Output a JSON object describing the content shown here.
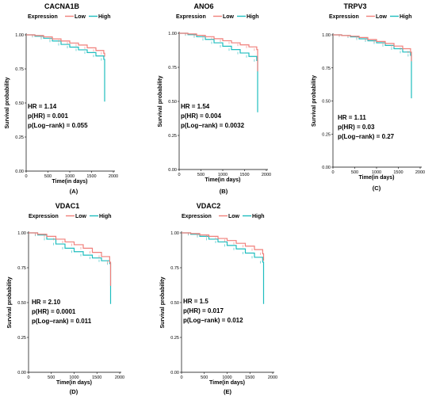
{
  "legend": {
    "title": "Expression",
    "low_label": "Low",
    "high_label": "High"
  },
  "colors": {
    "low": "#f07f7a",
    "high": "#1fbdbf"
  },
  "chart_data": [
    {
      "type": "line",
      "panel": "(A)",
      "title": "CACNA1B",
      "xlabel": "Time(in days)",
      "ylabel": "Survival probability",
      "xlim": [
        0,
        2000
      ],
      "ylim": [
        0,
        1
      ],
      "xticks": [
        "0",
        "500",
        "1000",
        "1500",
        "2000"
      ],
      "yticks": [
        "0.00",
        "0.25",
        "0.50",
        "0.75",
        "1.00"
      ],
      "stats": [
        "HR = 1.14",
        "p(HR) = 0.001",
        "p(Log−rank) = 0.055"
      ],
      "series": [
        {
          "name": "Low",
          "x": [
            0,
            200,
            400,
            600,
            800,
            1000,
            1200,
            1400,
            1600,
            1780,
            1800
          ],
          "y": [
            1.0,
            0.995,
            0.985,
            0.97,
            0.955,
            0.94,
            0.925,
            0.905,
            0.885,
            0.865,
            0.84
          ]
        },
        {
          "name": "High",
          "x": [
            0,
            200,
            400,
            600,
            800,
            1000,
            1200,
            1400,
            1600,
            1780,
            1800
          ],
          "y": [
            1.0,
            0.99,
            0.975,
            0.955,
            0.93,
            0.91,
            0.89,
            0.87,
            0.845,
            0.82,
            0.51
          ]
        }
      ]
    },
    {
      "type": "line",
      "panel": "(B)",
      "title": "ANO6",
      "xlabel": "Time(in days)",
      "ylabel": "Survival probability",
      "xlim": [
        0,
        2000
      ],
      "ylim": [
        0,
        1
      ],
      "xticks": [
        "0",
        "500",
        "1000",
        "1500",
        "2000"
      ],
      "yticks": [
        "0.00",
        "0.25",
        "0.50",
        "0.75",
        "1.00"
      ],
      "stats": [
        "HR = 1.54",
        "p(HR) = 0.004",
        "p(Log−rank) = 0.0032"
      ],
      "series": [
        {
          "name": "Low",
          "x": [
            0,
            200,
            400,
            600,
            800,
            1000,
            1200,
            1400,
            1600,
            1780,
            1800
          ],
          "y": [
            1.0,
            0.995,
            0.985,
            0.975,
            0.96,
            0.945,
            0.93,
            0.915,
            0.9,
            0.88,
            0.72
          ]
        },
        {
          "name": "High",
          "x": [
            0,
            200,
            400,
            600,
            800,
            1000,
            1200,
            1400,
            1600,
            1780,
            1800
          ],
          "y": [
            1.0,
            0.99,
            0.975,
            0.955,
            0.93,
            0.905,
            0.88,
            0.855,
            0.83,
            0.8,
            0.42
          ]
        }
      ]
    },
    {
      "type": "line",
      "panel": "(C)",
      "title": "TRPV3",
      "xlabel": "Time(in days)",
      "ylabel": "Survival probability",
      "xlim": [
        0,
        2000
      ],
      "ylim": [
        0,
        1
      ],
      "xticks": [
        "0",
        "500",
        "1000",
        "1500",
        "2000"
      ],
      "yticks": [
        "0.00",
        "0.25",
        "0.50",
        "0.75",
        "1.00"
      ],
      "stats": [
        "HR = 1.11",
        "p(HR) = 0.03",
        "p(Log−rank) = 0.27"
      ],
      "series": [
        {
          "name": "Low",
          "x": [
            0,
            200,
            400,
            600,
            800,
            1000,
            1200,
            1400,
            1600,
            1780,
            1800
          ],
          "y": [
            1.0,
            0.995,
            0.99,
            0.98,
            0.965,
            0.95,
            0.935,
            0.915,
            0.895,
            0.87,
            0.8
          ]
        },
        {
          "name": "High",
          "x": [
            0,
            200,
            400,
            600,
            800,
            1000,
            1200,
            1400,
            1600,
            1780,
            1800
          ],
          "y": [
            1.0,
            0.995,
            0.985,
            0.97,
            0.955,
            0.94,
            0.92,
            0.895,
            0.87,
            0.845,
            0.52
          ]
        }
      ]
    },
    {
      "type": "line",
      "panel": "(D)",
      "title": "VDAC1",
      "xlabel": "Time(in days)",
      "ylabel": "Survival probability",
      "xlim": [
        0,
        2000
      ],
      "ylim": [
        0,
        1
      ],
      "xticks": [
        "0",
        "500",
        "1000",
        "1500",
        "2000"
      ],
      "yticks": [
        "0.00",
        "0.25",
        "0.50",
        "0.75",
        "1.00"
      ],
      "stats": [
        "HR = 2.10",
        "p(HR) = 0.0001",
        "p(Log−rank) = 0.011"
      ],
      "series": [
        {
          "name": "Low",
          "x": [
            0,
            200,
            400,
            600,
            800,
            1000,
            1200,
            1400,
            1600,
            1780,
            1800
          ],
          "y": [
            1.0,
            0.99,
            0.975,
            0.955,
            0.935,
            0.915,
            0.89,
            0.86,
            0.83,
            0.79,
            0.62
          ]
        },
        {
          "name": "High",
          "x": [
            0,
            200,
            400,
            600,
            800,
            1000,
            1200,
            1400,
            1600,
            1780,
            1800
          ],
          "y": [
            1.0,
            0.985,
            0.955,
            0.92,
            0.89,
            0.865,
            0.84,
            0.82,
            0.8,
            0.78,
            0.49
          ]
        }
      ]
    },
    {
      "type": "line",
      "panel": "(E)",
      "title": "VDAC2",
      "xlabel": "Time(in days)",
      "ylabel": "Survival probability",
      "xlim": [
        0,
        2000
      ],
      "ylim": [
        0,
        1
      ],
      "xticks": [
        "0",
        "500",
        "1000",
        "1500",
        "2000"
      ],
      "yticks": [
        "0.00",
        "0.25",
        "0.50",
        "0.75",
        "1.00"
      ],
      "stats": [
        "HR = 1.5",
        "p(HR) = 0.017",
        "p(Log−rank) = 0.012"
      ],
      "series": [
        {
          "name": "Low",
          "x": [
            0,
            200,
            400,
            600,
            800,
            1000,
            1200,
            1400,
            1600,
            1780,
            1800
          ],
          "y": [
            1.0,
            0.995,
            0.985,
            0.975,
            0.96,
            0.945,
            0.925,
            0.905,
            0.88,
            0.85,
            0.8
          ]
        },
        {
          "name": "High",
          "x": [
            0,
            200,
            400,
            600,
            800,
            1000,
            1200,
            1400,
            1600,
            1780,
            1800
          ],
          "y": [
            1.0,
            0.99,
            0.975,
            0.955,
            0.935,
            0.91,
            0.885,
            0.855,
            0.825,
            0.79,
            0.49
          ]
        }
      ]
    }
  ]
}
